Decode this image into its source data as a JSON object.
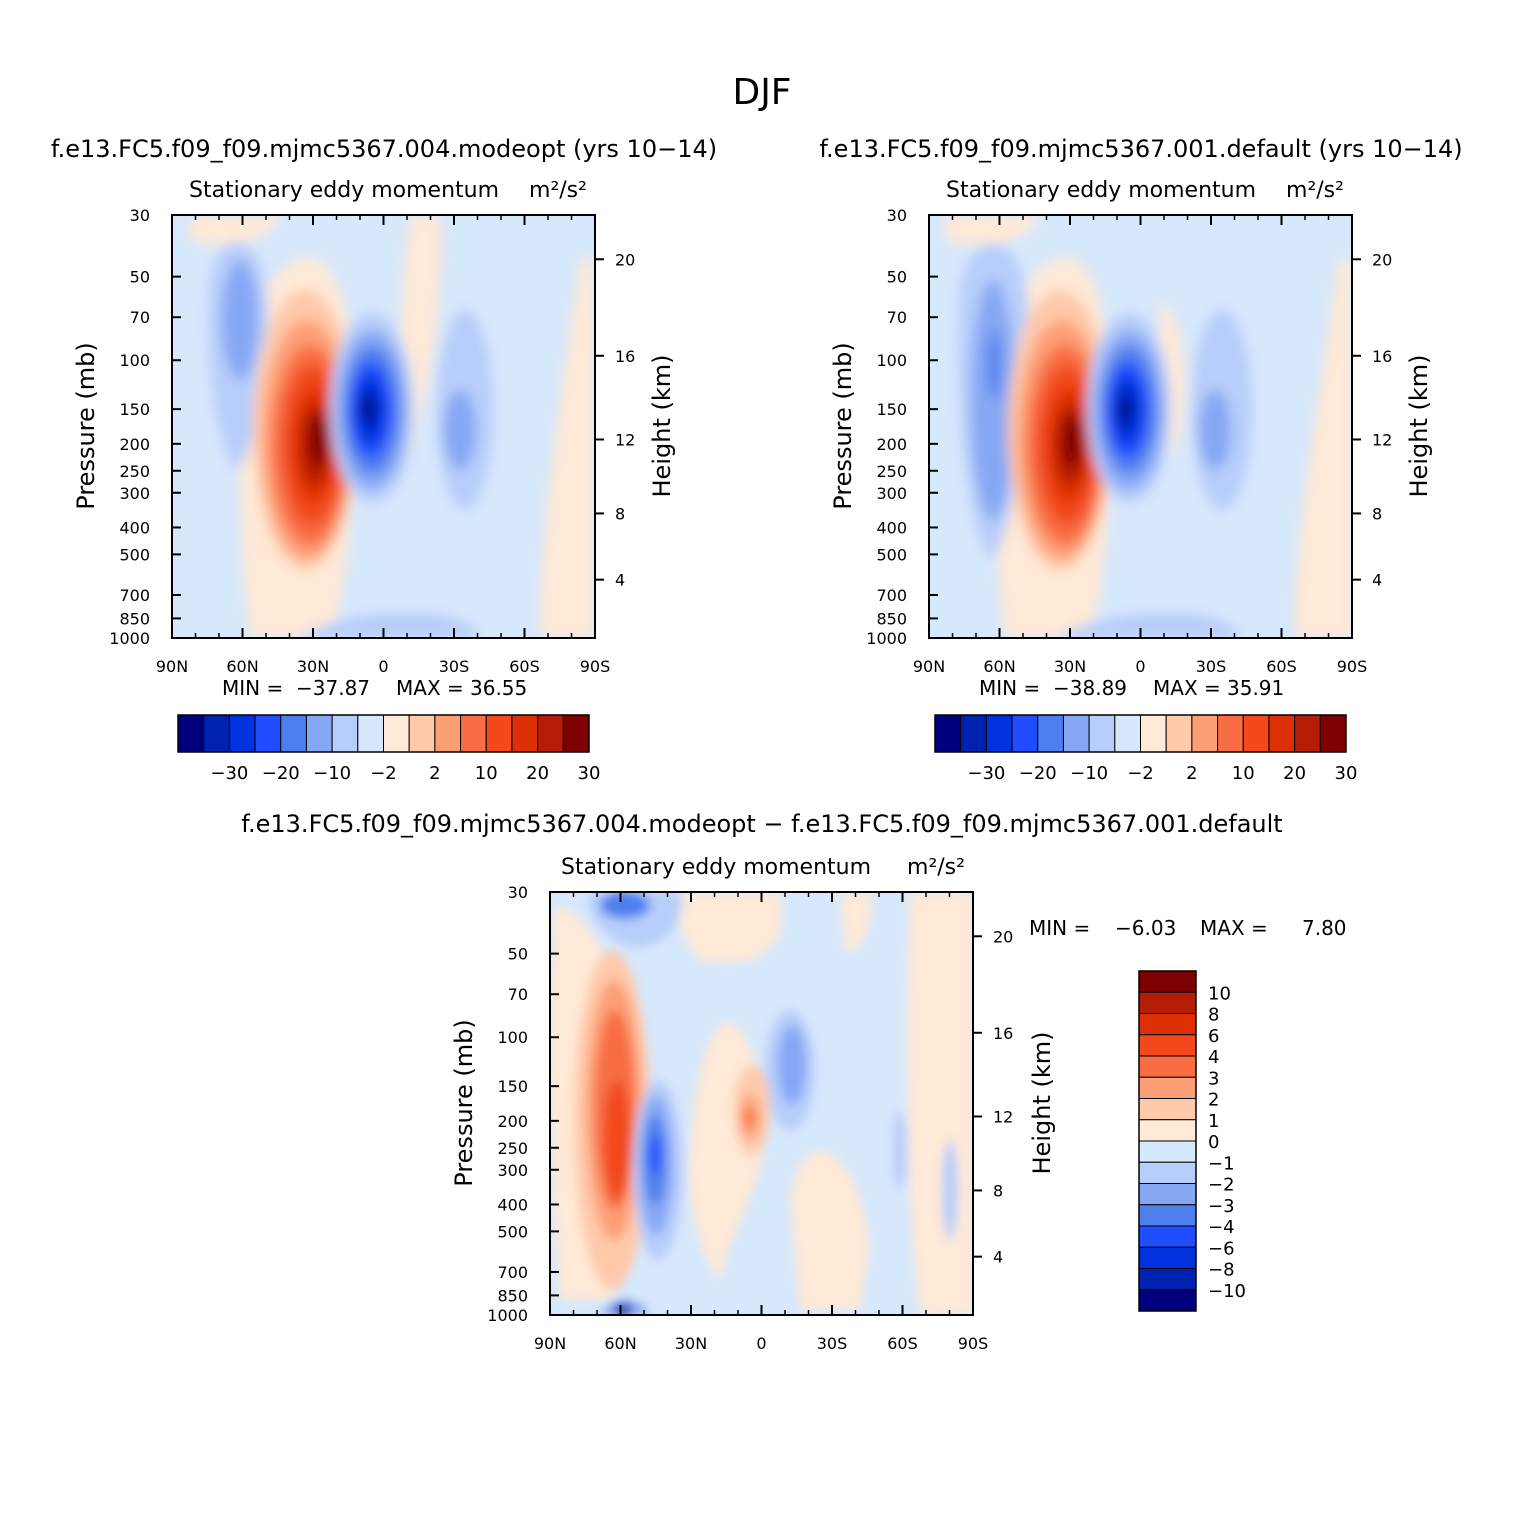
{
  "figure": {
    "title": "DJF"
  },
  "color_bar_colors": {
    "full": [
      "#00007f",
      "#0022b0",
      "#0033dd",
      "#1f4dff",
      "#4f7fee",
      "#86a7f4",
      "#b7cdfa",
      "#d6e8fc",
      "#ffe9d7",
      "#ffc9aa",
      "#fd9f76",
      "#f86d43",
      "#f24a1c",
      "#de3006",
      "#b51d06",
      "#7f0000"
    ],
    "diff": [
      "#00007f",
      "#0022b0",
      "#0033dd",
      "#1f4dff",
      "#4f7fee",
      "#86a7f4",
      "#b7cdfa",
      "#d6e8fc",
      "#ffe9d7",
      "#ffc9aa",
      "#fd9f76",
      "#f86d43",
      "#f24a1c",
      "#de3006",
      "#b51d06",
      "#7f0000"
    ]
  },
  "chart_data": [
    {
      "type": "heatmap",
      "id": "panel1",
      "run_title": "f.e13.FC5.f09_f09.mjmc5367.004.modeopt (yrs 10−14)",
      "title": "Stationary eddy momentum",
      "units": "m²/s²",
      "xlabel": "",
      "ylabel": "Pressure (mb)",
      "ylabel_right": "Height (km)",
      "x_ticks": [
        "90N",
        "60N",
        "30N",
        "0",
        "30S",
        "60S",
        "90S"
      ],
      "y_ticks": [
        30,
        50,
        70,
        100,
        150,
        200,
        250,
        300,
        400,
        500,
        700,
        850,
        1000
      ],
      "y_right_ticks": [
        4,
        8,
        12,
        16,
        20
      ],
      "ylim": [
        1000,
        30
      ],
      "min_label": "MIN =",
      "min_value": "−37.87",
      "max_label": "MAX =",
      "max_value": "36.55",
      "contour_levels": [
        -35,
        -30,
        -25,
        -20,
        -15,
        -10,
        -5,
        -2,
        0,
        2,
        5,
        10,
        15,
        20,
        25,
        30,
        35
      ],
      "colorbar_labels": [
        "−30",
        "−20",
        "−10",
        "−2",
        "2",
        "10",
        "20",
        "30"
      ],
      "features": [
        {
          "lat": 30,
          "p": 200,
          "value": 36.55
        },
        {
          "lat": 4,
          "p": 150,
          "value": -37.87
        },
        {
          "lat": 60,
          "p": 100,
          "value": -6
        },
        {
          "lat": -30,
          "p": 200,
          "value": -5
        }
      ]
    },
    {
      "type": "heatmap",
      "id": "panel2",
      "run_title": "f.e13.FC5.f09_f09.mjmc5367.001.default (yrs 10−14)",
      "title": "Stationary eddy momentum",
      "units": "m²/s²",
      "xlabel": "",
      "ylabel": "Pressure (mb)",
      "ylabel_right": "Height (km)",
      "x_ticks": [
        "90N",
        "60N",
        "30N",
        "0",
        "30S",
        "60S",
        "90S"
      ],
      "y_ticks": [
        30,
        50,
        70,
        100,
        150,
        200,
        250,
        300,
        400,
        500,
        700,
        850,
        1000
      ],
      "y_right_ticks": [
        4,
        8,
        12,
        16,
        20
      ],
      "ylim": [
        1000,
        30
      ],
      "min_label": "MIN =",
      "min_value": "−38.89",
      "max_label": "MAX =",
      "max_value": "35.91",
      "contour_levels": [
        -35,
        -30,
        -25,
        -20,
        -15,
        -10,
        -5,
        -2,
        0,
        2,
        5,
        10,
        15,
        20,
        25,
        30,
        35
      ],
      "colorbar_labels": [
        "−30",
        "−20",
        "−10",
        "−2",
        "2",
        "10",
        "20",
        "30"
      ],
      "features": [
        {
          "lat": 30,
          "p": 200,
          "value": 35.91
        },
        {
          "lat": 4,
          "p": 150,
          "value": -38.89
        },
        {
          "lat": 62,
          "p": 150,
          "value": -12
        },
        {
          "lat": -30,
          "p": 200,
          "value": -6
        }
      ]
    },
    {
      "type": "heatmap",
      "id": "panel3",
      "run_title": "f.e13.FC5.f09_f09.mjmc5367.004.modeopt − f.e13.FC5.f09_f09.mjmc5367.001.default",
      "title": "Stationary eddy momentum",
      "units": "m²/s²",
      "xlabel": "",
      "ylabel": "Pressure (mb)",
      "ylabel_right": "Height (km)",
      "x_ticks": [
        "90N",
        "60N",
        "30N",
        "0",
        "30S",
        "60S",
        "90S"
      ],
      "y_ticks": [
        30,
        50,
        70,
        100,
        150,
        200,
        250,
        300,
        400,
        500,
        700,
        850,
        1000
      ],
      "y_right_ticks": [
        4,
        8,
        12,
        16,
        20
      ],
      "ylim": [
        1000,
        30
      ],
      "min_label": "MIN =",
      "min_value": "−6.03",
      "max_label": "MAX =",
      "max_value": "7.80",
      "contour_levels": [
        -12,
        -10,
        -8,
        -6,
        -4,
        -3,
        -2,
        -1,
        0,
        1,
        2,
        3,
        4,
        6,
        8,
        10,
        12
      ],
      "colorbar_labels": [
        "10",
        "8",
        "6",
        "4",
        "3",
        "2",
        "1",
        "0",
        "−1",
        "−2",
        "−3",
        "−4",
        "−6",
        "−8",
        "−10"
      ],
      "features": [
        {
          "lat": 62,
          "p": 200,
          "value": 7.8
        },
        {
          "lat": 47,
          "p": 250,
          "value": -6.03
        },
        {
          "lat": 5,
          "p": 200,
          "value": 4
        },
        {
          "lat": -10,
          "p": 150,
          "value": -3
        }
      ]
    }
  ]
}
